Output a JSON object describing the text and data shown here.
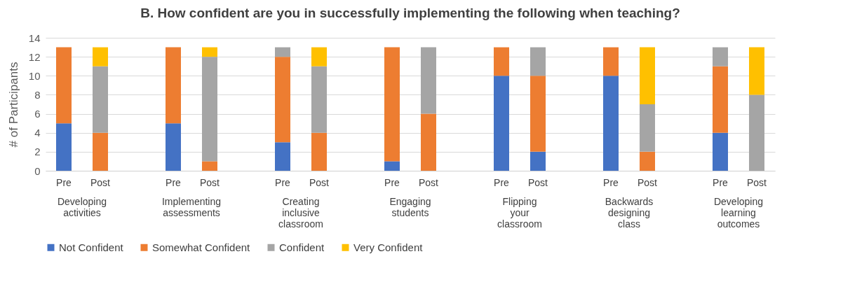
{
  "chart_data": {
    "type": "bar",
    "stacked": true,
    "title": "B. How confident are you in successfully implementing the following when teaching?",
    "ylabel": "# of Participants",
    "categories": [
      "Pre",
      "Post",
      null,
      "Pre",
      "Post",
      null,
      "Pre",
      "Post",
      null,
      "Pre",
      "Post",
      null,
      "Pre",
      "Post",
      null,
      "Pre",
      "Post",
      null,
      "Pre",
      "Post"
    ],
    "annotations": [
      "Developing activities",
      "Implementing assessments",
      "Creating inclusive classroom",
      "Engaging students",
      "Flipping your classroom",
      "Backwards designing class",
      "Developing learning outcomes"
    ],
    "series": [
      {
        "name": "Not Confident",
        "color": "#4472c4",
        "values": [
          5,
          0,
          null,
          5,
          0,
          null,
          3,
          0,
          null,
          1,
          0,
          null,
          10,
          2,
          null,
          10,
          0,
          null,
          4,
          0
        ]
      },
      {
        "name": "Somewhat Confident",
        "color": "#ed7d31",
        "values": [
          8,
          4,
          null,
          8,
          1,
          null,
          9,
          4,
          null,
          12,
          6,
          null,
          3,
          8,
          null,
          3,
          2,
          null,
          7,
          0
        ]
      },
      {
        "name": "Confident",
        "color": "#a5a5a5",
        "values": [
          0,
          7,
          null,
          0,
          11,
          null,
          1,
          7,
          null,
          0,
          7,
          null,
          0,
          3,
          null,
          0,
          5,
          null,
          2,
          8
        ]
      },
      {
        "name": "Very Confident",
        "color": "#ffc000",
        "values": [
          0,
          2,
          null,
          0,
          1,
          null,
          0,
          2,
          null,
          0,
          0,
          null,
          0,
          0,
          null,
          0,
          6,
          null,
          0,
          5
        ]
      }
    ],
    "ylim": [
      0,
      14
    ],
    "yticks": [
      0,
      2,
      4,
      6,
      8,
      10,
      12,
      14
    ],
    "grid": "y",
    "legend": "bottom"
  }
}
